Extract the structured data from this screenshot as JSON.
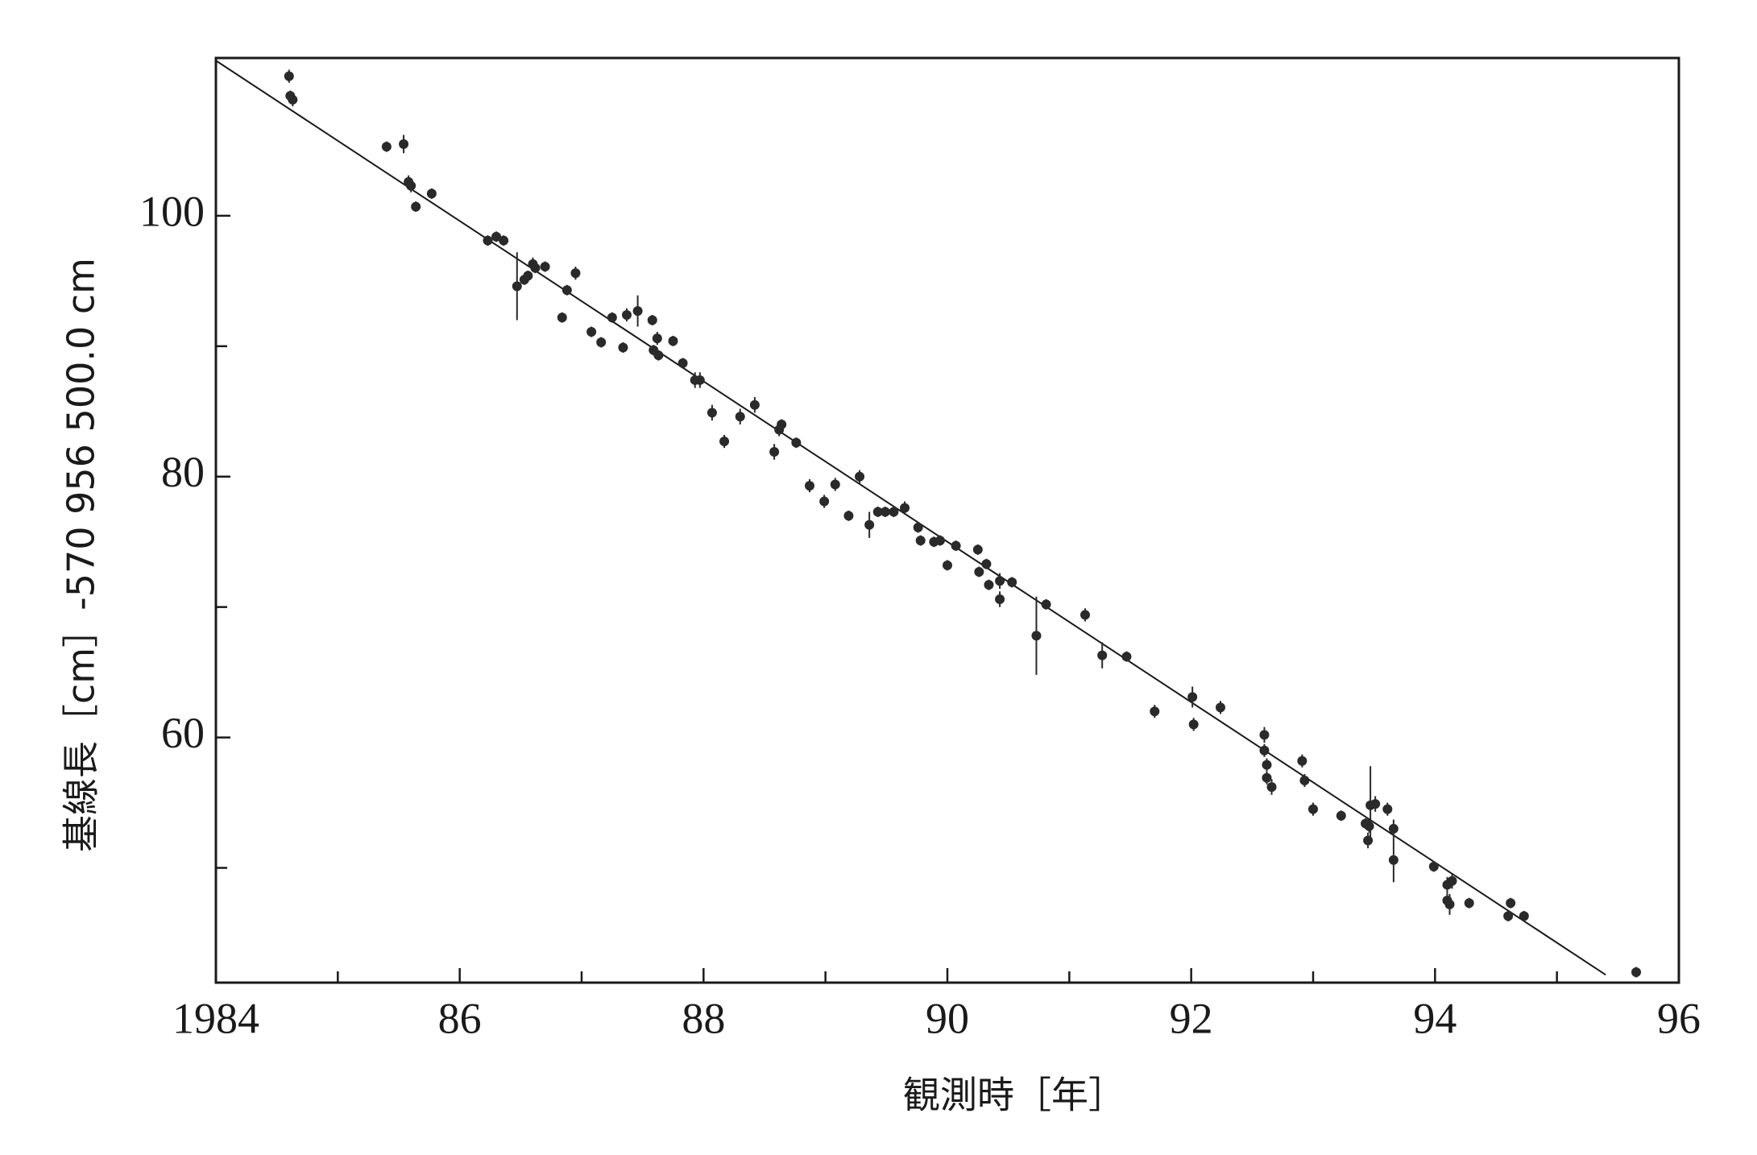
{
  "chart_data": {
    "type": "scatter",
    "x_label": "観測時［年］",
    "y_label": "基線長［cm］-570 956 500.0 cm",
    "xlim": [
      1984,
      1996
    ],
    "ylim": [
      41.2,
      112.1
    ],
    "xticks": [
      1984,
      {
        "value": 1986,
        "label": "86"
      },
      {
        "value": 1988,
        "label": "88"
      },
      {
        "value": 1990,
        "label": "90"
      },
      {
        "value": 1992,
        "label": "92"
      },
      {
        "value": 1994,
        "label": "94"
      },
      {
        "value": 1996,
        "label": "96"
      }
    ],
    "xminorticks": [
      1985,
      1987,
      1989,
      1991,
      1993,
      1995
    ],
    "yticks": [
      60,
      80,
      100
    ],
    "yminorticks": [
      50,
      70,
      90
    ],
    "grid": false,
    "series": [
      {
        "color": "#2a2a2a",
        "x": [
          1984.6,
          1984.61,
          1984.63,
          1985.4,
          1985.54,
          1985.58,
          1985.6,
          1985.64,
          1985.77,
          1986.23,
          1986.3,
          1986.36,
          1986.47,
          1986.53,
          1986.56,
          1986.6,
          1986.62,
          1986.7,
          1986.84,
          1986.88,
          1986.95,
          1987.08,
          1987.16,
          1987.25,
          1987.34,
          1987.37,
          1987.46,
          1987.58,
          1987.59,
          1987.62,
          1987.63,
          1987.75,
          1987.83,
          1987.93,
          1987.97,
          1988.07,
          1988.17,
          1988.3,
          1988.42,
          1988.58,
          1988.62,
          1988.64,
          1988.76,
          1988.87,
          1988.99,
          1989.08,
          1989.19,
          1989.28,
          1989.36,
          1989.43,
          1989.49,
          1989.56,
          1989.65,
          1989.76,
          1989.78,
          1989.89,
          1989.94,
          1990.0,
          1990.07,
          1990.25,
          1990.26,
          1990.32,
          1990.34,
          1990.43,
          1990.43,
          1990.53,
          1990.73,
          1990.81,
          1991.13,
          1991.27,
          1991.47,
          1991.7,
          1992.01,
          1992.02,
          1992.24,
          1992.6,
          1992.6,
          1992.62,
          1992.62,
          1992.66,
          1992.91,
          1992.93,
          1993.0,
          1993.23,
          1993.43,
          1993.45,
          1993.46,
          1993.47,
          1993.51,
          1993.61,
          1993.66,
          1993.66,
          1993.99,
          1994.1,
          1994.1,
          1994.12,
          1994.14,
          1994.28,
          1994.6,
          1994.62,
          1994.73,
          1995.65
        ],
        "values": [
          110.7,
          109.2,
          108.9,
          105.3,
          105.5,
          102.6,
          102.3,
          100.7,
          101.7,
          98.1,
          98.4,
          98.1,
          94.6,
          95.1,
          95.4,
          96.3,
          96.0,
          96.1,
          92.2,
          94.3,
          95.6,
          91.1,
          90.3,
          92.2,
          89.9,
          92.4,
          92.7,
          92.0,
          89.7,
          90.6,
          89.3,
          90.4,
          88.7,
          87.4,
          87.4,
          84.9,
          82.7,
          84.6,
          85.5,
          81.9,
          83.6,
          84.0,
          82.6,
          79.3,
          78.1,
          79.4,
          77.0,
          80.0,
          76.3,
          77.3,
          77.3,
          77.3,
          77.6,
          76.1,
          75.1,
          75.0,
          75.1,
          73.2,
          74.7,
          74.4,
          72.7,
          73.3,
          71.7,
          72.0,
          70.6,
          71.9,
          67.8,
          70.2,
          69.4,
          66.3,
          66.2,
          62.0,
          63.1,
          61.0,
          62.3,
          60.2,
          59.0,
          57.9,
          56.9,
          56.2,
          58.2,
          56.7,
          54.5,
          54.0,
          53.4,
          52.1,
          53.2,
          54.8,
          54.9,
          54.5,
          53.0,
          50.6,
          50.1,
          48.7,
          47.5,
          47.2,
          49.0,
          47.3,
          46.3,
          47.3,
          46.3,
          42.0
        ],
        "errors": [
          0.5,
          0.4,
          0.5,
          0.4,
          0.7,
          0.5,
          0.5,
          0.4,
          0.4,
          0.4,
          0.4,
          0.4,
          2.6,
          0.4,
          0.4,
          0.5,
          0.4,
          0.4,
          0.4,
          0.4,
          0.5,
          0.4,
          0.4,
          0.4,
          0.4,
          0.5,
          1.2,
          0.4,
          0.4,
          0.5,
          0.4,
          0.4,
          0.4,
          0.6,
          0.6,
          0.6,
          0.5,
          0.6,
          0.6,
          0.6,
          0.5,
          0.4,
          0.4,
          0.5,
          0.5,
          0.5,
          0.4,
          0.5,
          1.0,
          0.4,
          0.4,
          0.4,
          0.5,
          0.4,
          0.4,
          0.4,
          0.4,
          0.4,
          0.4,
          0.4,
          0.4,
          0.4,
          0.4,
          0.6,
          0.6,
          0.4,
          3.0,
          0.4,
          0.5,
          1.0,
          0.4,
          0.5,
          0.8,
          0.5,
          0.5,
          0.6,
          0.5,
          0.5,
          0.5,
          0.6,
          0.5,
          0.5,
          0.5,
          0.4,
          0.4,
          0.6,
          0.5,
          3.0,
          0.6,
          0.5,
          0.7,
          1.7,
          0.4,
          0.6,
          0.6,
          0.8,
          0.6,
          0.4,
          0.4,
          0.4,
          0.4,
          0.4
        ]
      }
    ],
    "fit": {
      "color": "#1a1a1a",
      "x": [
        1984.0,
        1995.4
      ],
      "values": [
        111.9,
        41.8
      ]
    }
  }
}
